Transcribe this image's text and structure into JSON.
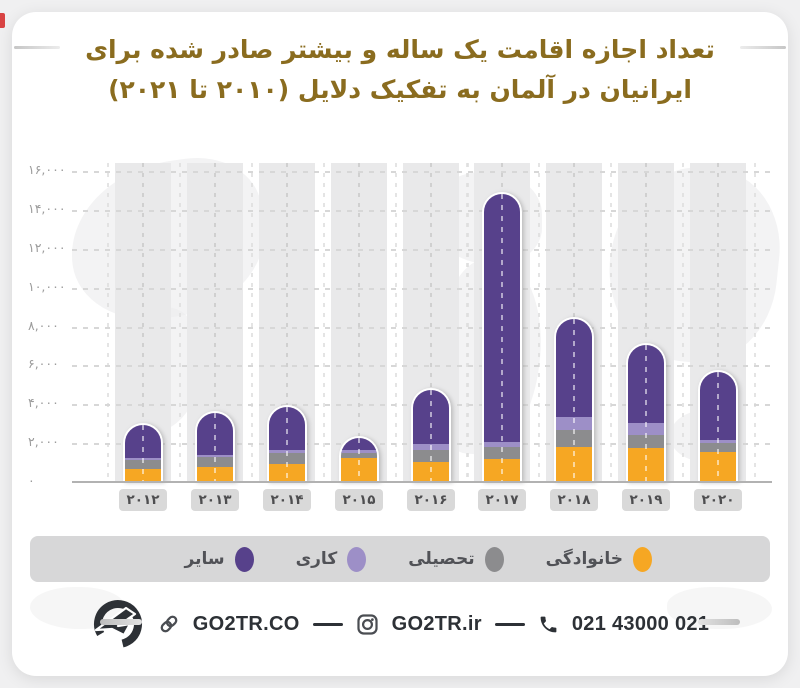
{
  "title": {
    "line1": "تعداد اجازه اقامت یک ساله و بیشتر صادر شده برای",
    "line2": "ایرانیان در آلمان به تفکیک دلایل (۲۰۱۰ تا ۲۰۲۱)"
  },
  "colors": {
    "title": "#8a6c1f",
    "bar_family": "#F6A723",
    "bar_study": "#8C8C8E",
    "bar_work": "#9D8FC7",
    "bar_other": "#57418B",
    "legend_bg": "#d7d7d8",
    "column_band": "#e9e9ea",
    "badge_bg": "#d9d9d9",
    "footer_text": "#2d3136",
    "red_mark": "#d84343"
  },
  "chart_data": {
    "type": "bar",
    "stacked": true,
    "title": "تعداد اجازه اقامت یک ساله و بیشتر صادر شده برای ایرانیان در آلمان به تفکیک دلایل (۲۰۱۰ تا ۲۰۲۱)",
    "categories": [
      "۲۰۱۲",
      "۲۰۱۳",
      "۲۰۱۴",
      "۲۰۱۵",
      "۲۰۱۶",
      "۲۰۱۷",
      "۲۰۱۸",
      "۲۰۱۹",
      "۲۰۲۰"
    ],
    "series": [
      {
        "name": "خانوادگی",
        "color": "#F6A723",
        "values": [
          650,
          750,
          950,
          1250,
          1050,
          1200,
          1800,
          1750,
          1550
        ]
      },
      {
        "name": "تحصیلی",
        "color": "#8C8C8E",
        "values": [
          500,
          550,
          550,
          250,
          600,
          600,
          850,
          650,
          450
        ]
      },
      {
        "name": "کاری",
        "color": "#9D8FC7",
        "values": [
          100,
          100,
          150,
          150,
          300,
          250,
          700,
          650,
          150
        ]
      },
      {
        "name": "سایر",
        "color": "#57418B",
        "values": [
          1700,
          2150,
          2200,
          600,
          2800,
          12750,
          5050,
          4000,
          3500
        ]
      }
    ],
    "totals": [
      2950,
      3550,
      3850,
      2250,
      4750,
      14800,
      8400,
      7050,
      5650
    ],
    "ylim": [
      0,
      16000
    ],
    "ytick_step": 2000,
    "ytick_labels": [
      "۰",
      "۲,۰۰۰",
      "۴,۰۰۰",
      "۶,۰۰۰",
      "۸,۰۰۰",
      "۱۰,۰۰۰",
      "۱۲,۰۰۰",
      "۱۴,۰۰۰",
      "۱۶,۰۰۰"
    ],
    "grid": "dashed",
    "legend_position": "bottom"
  },
  "footer": {
    "logo": "go2tr-plane-logo",
    "link_icon": "link-icon",
    "website_label": "GO2TR.CO",
    "instagram_icon": "instagram-icon",
    "instagram_label": "GO2TR.ir",
    "phone_icon": "phone-icon",
    "phone_label": "021 43000 021"
  }
}
